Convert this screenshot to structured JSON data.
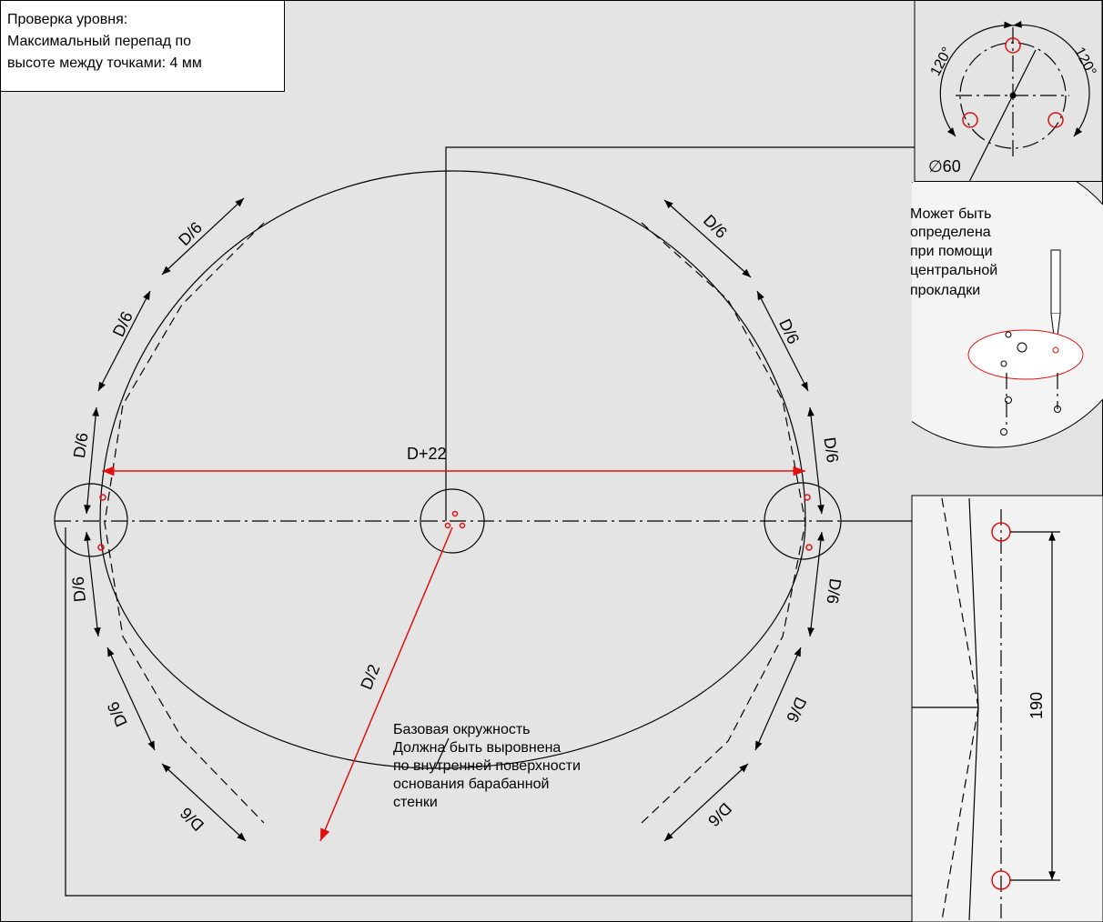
{
  "note": {
    "lines": [
      "Проверка уровня:",
      "Максимальный перепад по",
      "высоте между точками: 4 мм"
    ]
  },
  "main": {
    "segment_labels": [
      "D/6",
      "D/6",
      "D/6",
      "D/6",
      "D/6",
      "D/6",
      "D/6",
      "D/6",
      "D/6",
      "D/6",
      "D/6",
      "D/6"
    ],
    "diameter_label": "D+22",
    "radius_label": "D/2",
    "base_note": [
      "Базовая окружность",
      "Должна быть выровнена",
      "по внутренней поверхности",
      "основания барабанной",
      "стенки"
    ]
  },
  "hole_pattern": {
    "angle_labels": [
      "120°",
      "120°"
    ],
    "diameter_label": "∅60"
  },
  "callout": {
    "lines": [
      "Может быть",
      "определена",
      "при помощи",
      "центральной",
      "прокладки"
    ]
  },
  "detail": {
    "distance_label": "190"
  }
}
